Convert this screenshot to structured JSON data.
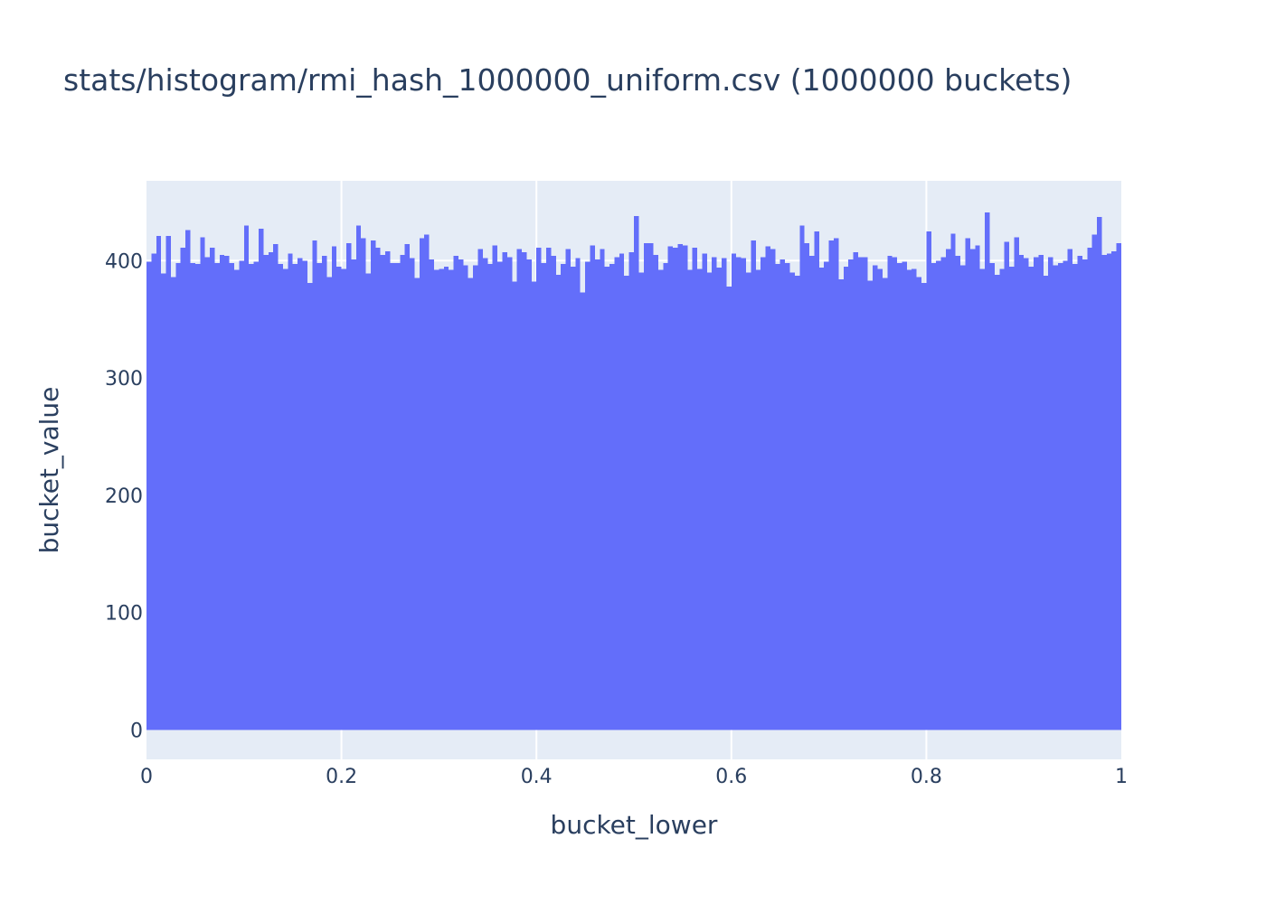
{
  "chart_data": {
    "type": "bar",
    "title": "stats/histogram/rmi_hash_1000000_uniform.csv (1000000 buckets)",
    "xlabel": "bucket_lower",
    "ylabel": "bucket_value",
    "xlim": [
      0,
      1
    ],
    "ylim": [
      -25,
      468
    ],
    "x_ticks": [
      0,
      0.2,
      0.4,
      0.6,
      0.8,
      1
    ],
    "x_tick_labels": [
      "0",
      "0.2",
      "0.4",
      "0.6",
      "0.8",
      "1"
    ],
    "y_ticks": [
      0,
      100,
      200,
      300,
      400
    ],
    "y_tick_labels": [
      "0",
      "100",
      "200",
      "300",
      "400"
    ],
    "grid": true,
    "legend": "none",
    "colors": {
      "bar": "#636efa",
      "plot_background": "#e5ecf6",
      "grid": "#ffffff",
      "text": "#2a3f5f"
    },
    "series": [
      {
        "bin_width": 0.005,
        "x": [
          0,
          0.005,
          0.01,
          0.015,
          0.02,
          0.025,
          0.03,
          0.035,
          0.04,
          0.045,
          0.05,
          0.055,
          0.06,
          0.065,
          0.07,
          0.075,
          0.08,
          0.085,
          0.09,
          0.095,
          0.1,
          0.105,
          0.11,
          0.115,
          0.12,
          0.125,
          0.13,
          0.135,
          0.14,
          0.145,
          0.15,
          0.155,
          0.16,
          0.165,
          0.17,
          0.175,
          0.18,
          0.185,
          0.19,
          0.195,
          0.2,
          0.205,
          0.21,
          0.215,
          0.22,
          0.225,
          0.23,
          0.235,
          0.24,
          0.245,
          0.25,
          0.255,
          0.26,
          0.265,
          0.27,
          0.275,
          0.28,
          0.285,
          0.29,
          0.295,
          0.3,
          0.305,
          0.31,
          0.315,
          0.32,
          0.325,
          0.33,
          0.335,
          0.34,
          0.345,
          0.35,
          0.355,
          0.36,
          0.365,
          0.37,
          0.375,
          0.38,
          0.385,
          0.39,
          0.395,
          0.4,
          0.405,
          0.41,
          0.415,
          0.42,
          0.425,
          0.43,
          0.435,
          0.44,
          0.445,
          0.45,
          0.455,
          0.46,
          0.465,
          0.47,
          0.475,
          0.48,
          0.485,
          0.49,
          0.495,
          0.5,
          0.505,
          0.51,
          0.515,
          0.52,
          0.525,
          0.53,
          0.535,
          0.54,
          0.545,
          0.55,
          0.555,
          0.56,
          0.565,
          0.57,
          0.575,
          0.58,
          0.585,
          0.59,
          0.595,
          0.6,
          0.605,
          0.61,
          0.615,
          0.62,
          0.625,
          0.63,
          0.635,
          0.64,
          0.645,
          0.65,
          0.655,
          0.66,
          0.665,
          0.67,
          0.675,
          0.68,
          0.685,
          0.69,
          0.695,
          0.7,
          0.705,
          0.71,
          0.715,
          0.72,
          0.725,
          0.73,
          0.735,
          0.74,
          0.745,
          0.75,
          0.755,
          0.76,
          0.765,
          0.77,
          0.775,
          0.78,
          0.785,
          0.79,
          0.795,
          0.8,
          0.805,
          0.81,
          0.815,
          0.82,
          0.825,
          0.83,
          0.835,
          0.84,
          0.845,
          0.85,
          0.855,
          0.86,
          0.865,
          0.87,
          0.875,
          0.88,
          0.885,
          0.89,
          0.895,
          0.9,
          0.905,
          0.91,
          0.915,
          0.92,
          0.925,
          0.93,
          0.935,
          0.94,
          0.945,
          0.95,
          0.955,
          0.96,
          0.965,
          0.97,
          0.975,
          0.98,
          0.985,
          0.99,
          0.995
        ],
        "values": [
          399,
          406,
          421,
          389,
          421,
          386,
          398,
          411,
          426,
          398,
          397,
          420,
          403,
          411,
          398,
          405,
          404,
          398,
          392,
          400,
          430,
          397,
          399,
          427,
          405,
          407,
          414,
          397,
          393,
          406,
          397,
          402,
          400,
          381,
          417,
          398,
          404,
          386,
          412,
          395,
          393,
          415,
          401,
          430,
          419,
          389,
          417,
          411,
          405,
          408,
          398,
          398,
          405,
          414,
          402,
          385,
          419,
          422,
          401,
          392,
          393,
          395,
          392,
          404,
          401,
          396,
          385,
          396,
          410,
          402,
          397,
          413,
          399,
          407,
          403,
          382,
          410,
          407,
          401,
          382,
          411,
          398,
          411,
          404,
          388,
          397,
          410,
          395,
          402,
          373,
          399,
          413,
          401,
          410,
          395,
          397,
          403,
          406,
          387,
          407,
          438,
          390,
          415,
          415,
          405,
          392,
          398,
          412,
          411,
          414,
          413,
          392,
          411,
          393,
          406,
          390,
          403,
          394,
          402,
          378,
          406,
          403,
          402,
          390,
          417,
          392,
          403,
          412,
          410,
          397,
          401,
          398,
          390,
          387,
          430,
          415,
          404,
          425,
          394,
          399,
          417,
          419,
          384,
          395,
          401,
          407,
          403,
          403,
          383,
          396,
          393,
          385,
          404,
          403,
          398,
          399,
          392,
          393,
          386,
          381,
          425,
          398,
          400,
          403,
          410,
          423,
          404,
          396,
          419,
          410,
          413,
          393,
          441,
          398,
          388,
          393,
          416,
          395,
          420,
          405,
          402,
          395,
          403,
          405,
          387,
          403,
          396,
          398,
          400,
          410,
          397,
          404,
          401,
          411,
          422,
          437,
          405,
          406,
          408,
          415
        ]
      }
    ]
  }
}
